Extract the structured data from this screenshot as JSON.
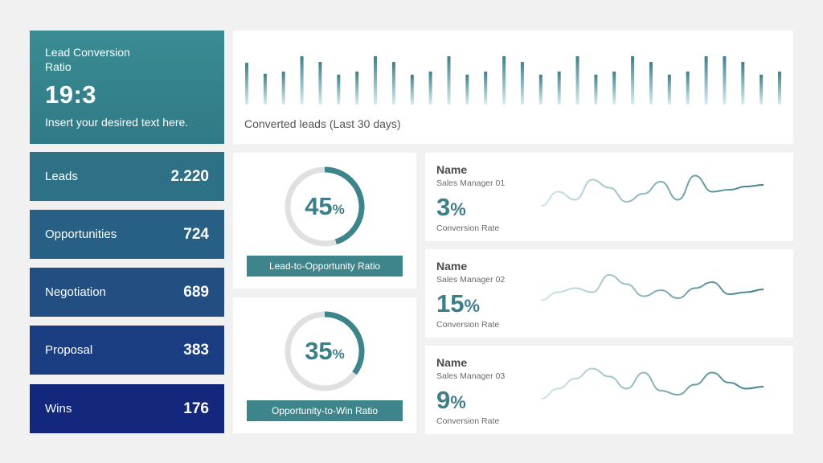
{
  "hero": {
    "title": "Lead Conversion Ratio",
    "value": "19:3",
    "subtitle": "Insert your desired text here."
  },
  "stats": [
    {
      "label": "Leads",
      "value": "2.220",
      "color": "#2e7186"
    },
    {
      "label": "Opportunities",
      "value": "724",
      "color": "#285f84"
    },
    {
      "label": "Negotiation",
      "value": "689",
      "color": "#224e82"
    },
    {
      "label": "Proposal",
      "value": "383",
      "color": "#1b3d81"
    },
    {
      "label": "Wins",
      "value": "176",
      "color": "#13287c"
    }
  ],
  "converted": {
    "caption": "Converted leads (Last 30 days)",
    "bars": [
      0.95,
      0.7,
      0.75,
      1.1,
      0.97,
      0.68,
      0.75,
      1.1,
      0.97,
      0.68,
      0.75,
      1.1,
      0.68,
      0.75,
      1.1,
      0.97,
      0.68,
      0.75,
      1.1,
      0.68,
      0.75,
      1.1,
      0.97,
      0.68,
      0.75,
      1.1,
      1.1,
      0.97,
      0.68,
      0.75
    ]
  },
  "ratios": [
    {
      "number": "45",
      "pct": "%",
      "value": 45,
      "label": "Lead-to-Opportunity  Ratio"
    },
    {
      "number": "35",
      "pct": "%",
      "value": 35,
      "label": "Opportunity-to-Win  Ratio"
    }
  ],
  "managers": [
    {
      "name": "Name",
      "role": "Sales Manager 01",
      "rate": "3",
      "pct": "%",
      "caption": "Conversion Rate",
      "spark": [
        0.2,
        0.55,
        0.35,
        0.85,
        0.65,
        0.3,
        0.5,
        0.8,
        0.35,
        0.95,
        0.55,
        0.6,
        0.68,
        0.72
      ]
    },
    {
      "name": "Name",
      "role": "Sales Manager 02",
      "rate": "15",
      "pct": "%",
      "caption": "Conversion Rate",
      "spark": [
        0.25,
        0.45,
        0.55,
        0.45,
        0.88,
        0.65,
        0.35,
        0.5,
        0.3,
        0.55,
        0.7,
        0.4,
        0.45,
        0.52
      ]
    },
    {
      "name": "Name",
      "role": "Sales Manager 03",
      "rate": "9",
      "pct": "%",
      "caption": "Conversion Rate",
      "spark": [
        0.2,
        0.45,
        0.7,
        0.95,
        0.75,
        0.45,
        0.85,
        0.4,
        0.3,
        0.55,
        0.85,
        0.6,
        0.45,
        0.5
      ]
    }
  ],
  "colors": {
    "accent": "#3d7f89",
    "ring_track": "#e0e0e0"
  }
}
